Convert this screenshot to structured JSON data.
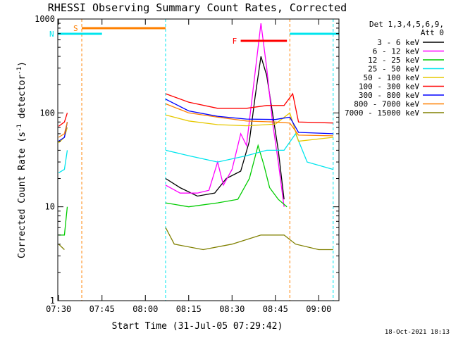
{
  "chart_data": {
    "type": "line",
    "title": "RHESSI Observing Summary Count Rates, Corrected",
    "xlabel": "Start Time (31-Jul-05 07:29:42)",
    "ylabel_main": "Corrected Count Rate (s",
    "ylabel_sup1": "-1",
    "ylabel_mid": " detector",
    "ylabel_sup2": "-1",
    "ylabel_end": ")",
    "y_scale": "log",
    "ylim": [
      1,
      1000
    ],
    "xlim": [
      "07:29:42",
      "09:07:00"
    ],
    "x_ticks": [
      "07:30",
      "07:45",
      "08:00",
      "08:15",
      "08:30",
      "08:45",
      "09:00"
    ],
    "y_ticks": [
      "1",
      "10",
      "100",
      "1000"
    ],
    "legend_header": [
      "Det 1,3,4,5,6,9,",
      "Att 0"
    ],
    "timestamp": "18-Oct-2021 18:13",
    "flags": [
      {
        "label": "S",
        "color": "#ff8000"
      },
      {
        "label": "N",
        "color": "#00e5ee"
      },
      {
        "label": "F",
        "color": "#ff0000"
      }
    ],
    "data_gaps": [
      [
        "07:38:00",
        "08:07:00"
      ],
      [
        "08:50:00",
        "09:05:00"
      ]
    ],
    "series": [
      {
        "name": "3 - 6 keV",
        "color": "#000000",
        "points": [
          [
            "08:07",
            20
          ],
          [
            "08:12",
            16
          ],
          [
            "08:18",
            13
          ],
          [
            "08:24",
            14
          ],
          [
            "08:28",
            20
          ],
          [
            "08:33",
            24
          ],
          [
            "08:36",
            50
          ],
          [
            "08:38",
            150
          ],
          [
            "08:40",
            400
          ],
          [
            "08:42",
            250
          ],
          [
            "08:44",
            100
          ],
          [
            "08:46",
            40
          ],
          [
            "08:48",
            12
          ]
        ]
      },
      {
        "name": "6 - 12 keV",
        "color": "#ff00ff",
        "points": [
          [
            "08:07",
            17
          ],
          [
            "08:12",
            14
          ],
          [
            "08:18",
            14
          ],
          [
            "08:22",
            15
          ],
          [
            "08:25",
            30
          ],
          [
            "08:27",
            17
          ],
          [
            "08:30",
            25
          ],
          [
            "08:33",
            60
          ],
          [
            "08:35",
            45
          ],
          [
            "08:37",
            150
          ],
          [
            "08:40",
            900
          ],
          [
            "08:42",
            300
          ],
          [
            "08:44",
            80
          ],
          [
            "08:46",
            30
          ],
          [
            "08:48",
            10
          ]
        ]
      },
      {
        "name": "12 - 25 keV",
        "color": "#00cc00",
        "points": [
          [
            "07:30",
            5
          ],
          [
            "07:32",
            5
          ],
          [
            "07:33",
            10
          ],
          [
            "08:07",
            11
          ],
          [
            "08:15",
            10
          ],
          [
            "08:25",
            11
          ],
          [
            "08:32",
            12
          ],
          [
            "08:36",
            20
          ],
          [
            "08:39",
            45
          ],
          [
            "08:41",
            28
          ],
          [
            "08:43",
            16
          ],
          [
            "08:46",
            12
          ],
          [
            "08:49",
            10
          ]
        ]
      },
      {
        "name": "25 - 50 keV",
        "color": "#00e5ee",
        "points": [
          [
            "07:30",
            23
          ],
          [
            "07:32",
            25
          ],
          [
            "07:33",
            40
          ],
          [
            "08:07",
            40
          ],
          [
            "08:15",
            35
          ],
          [
            "08:25",
            30
          ],
          [
            "08:35",
            35
          ],
          [
            "08:42",
            40
          ],
          [
            "08:48",
            40
          ],
          [
            "08:52",
            60
          ],
          [
            "08:56",
            30
          ],
          [
            "09:05",
            25
          ]
        ]
      },
      {
        "name": "50 - 100 keV",
        "color": "#e6c800",
        "points": [
          [
            "07:30",
            48
          ],
          [
            "07:32",
            55
          ],
          [
            "07:33",
            70
          ],
          [
            "08:07",
            95
          ],
          [
            "08:15",
            82
          ],
          [
            "08:25",
            75
          ],
          [
            "08:35",
            73
          ],
          [
            "08:45",
            76
          ],
          [
            "08:50",
            100
          ],
          [
            "08:53",
            50
          ],
          [
            "09:05",
            55
          ]
        ]
      },
      {
        "name": "100 - 300 keV",
        "color": "#ff0000",
        "points": [
          [
            "07:30",
            72
          ],
          [
            "07:32",
            80
          ],
          [
            "07:33",
            100
          ],
          [
            "08:07",
            160
          ],
          [
            "08:15",
            130
          ],
          [
            "08:25",
            112
          ],
          [
            "08:35",
            112
          ],
          [
            "08:42",
            120
          ],
          [
            "08:48",
            120
          ],
          [
            "08:51",
            160
          ],
          [
            "08:53",
            80
          ],
          [
            "09:05",
            78
          ]
        ]
      },
      {
        "name": "300 - 800 keV",
        "color": "#0000ff",
        "points": [
          [
            "07:30",
            50
          ],
          [
            "07:32",
            55
          ],
          [
            "07:33",
            80
          ],
          [
            "08:07",
            140
          ],
          [
            "08:15",
            105
          ],
          [
            "08:25",
            92
          ],
          [
            "08:35",
            86
          ],
          [
            "08:45",
            85
          ],
          [
            "08:50",
            90
          ],
          [
            "08:53",
            62
          ],
          [
            "09:05",
            60
          ]
        ]
      },
      {
        "name": "800 - 7000 keV",
        "color": "#ff8000",
        "points": [
          [
            "07:30",
            55
          ],
          [
            "07:32",
            60
          ],
          [
            "07:33",
            80
          ],
          [
            "08:07",
            125
          ],
          [
            "08:15",
            100
          ],
          [
            "08:25",
            90
          ],
          [
            "08:35",
            82
          ],
          [
            "08:45",
            80
          ],
          [
            "08:50",
            78
          ],
          [
            "08:53",
            58
          ],
          [
            "09:05",
            57
          ]
        ]
      },
      {
        "name": "7000 - 15000 keV",
        "color": "#808000",
        "points": [
          [
            "07:30",
            4
          ],
          [
            "07:32",
            3.5
          ],
          [
            "08:07",
            6
          ],
          [
            "08:10",
            4
          ],
          [
            "08:20",
            3.5
          ],
          [
            "08:30",
            4
          ],
          [
            "08:40",
            5
          ],
          [
            "08:48",
            5
          ],
          [
            "08:52",
            4
          ],
          [
            "09:00",
            3.5
          ],
          [
            "09:05",
            3.5
          ]
        ]
      }
    ]
  }
}
